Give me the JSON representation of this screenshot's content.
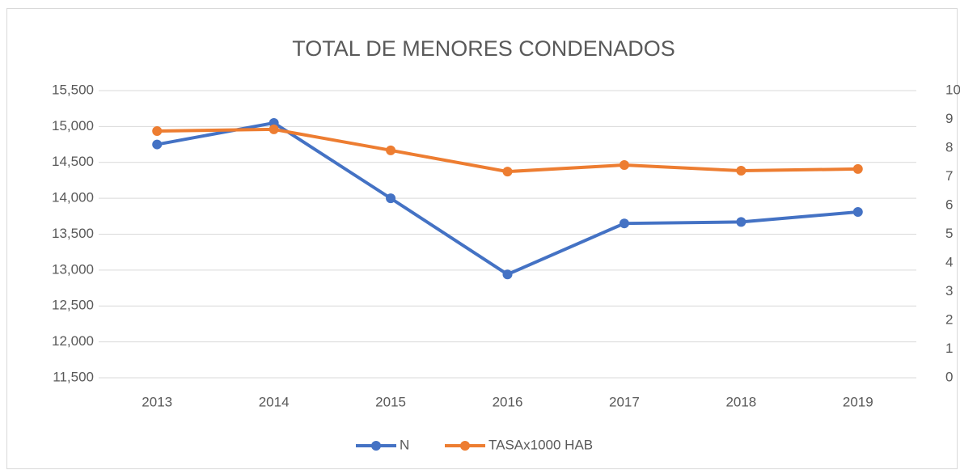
{
  "chart_data": {
    "type": "line",
    "title": "TOTAL DE MENORES CONDENADOS",
    "categories": [
      "2013",
      "2014",
      "2015",
      "2016",
      "2017",
      "2018",
      "2019"
    ],
    "series": [
      {
        "name": "N",
        "color": "#4472c4",
        "values": [
          14750,
          15050,
          14000,
          12940,
          13650,
          13670,
          13810
        ]
      },
      {
        "name": "TASAx1000 HAB",
        "color": "#ed7d31",
        "axis": "y2",
        "values": [
          8.59,
          8.65,
          7.92,
          7.18,
          7.41,
          7.21,
          7.27
        ]
      }
    ],
    "ylim": [
      11500,
      15500
    ],
    "yticks": [
      {
        "value": 11500,
        "label": "11,500"
      },
      {
        "value": 12000,
        "label": "12,000"
      },
      {
        "value": 12500,
        "label": "12,500"
      },
      {
        "value": 13000,
        "label": "13,000"
      },
      {
        "value": 13500,
        "label": "13,500"
      },
      {
        "value": 14000,
        "label": "14,000"
      },
      {
        "value": 14500,
        "label": "14,500"
      },
      {
        "value": 15000,
        "label": "15,000"
      },
      {
        "value": 15500,
        "label": "15,500"
      }
    ],
    "y2lim": [
      0,
      10
    ],
    "y2ticks": [
      0,
      1,
      2,
      3,
      4,
      5,
      6,
      7,
      8,
      9,
      10
    ],
    "grid": true,
    "legend": "bottom"
  }
}
